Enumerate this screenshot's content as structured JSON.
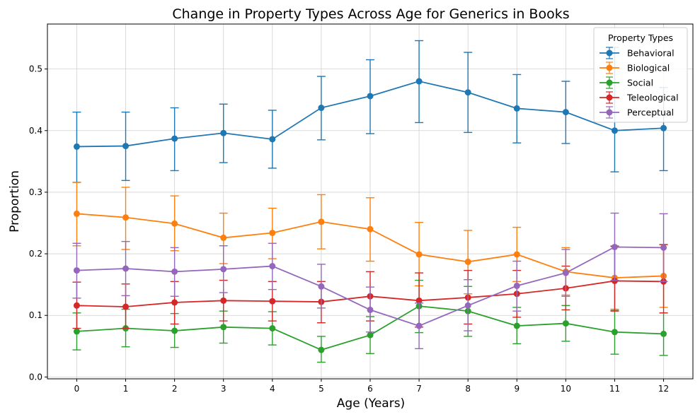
{
  "chart_data": {
    "type": "line",
    "title": "Change in Property Types Across Age for Generics in Books",
    "xlabel": "Age (Years)",
    "ylabel": "Proportion",
    "x": [
      0,
      1,
      2,
      3,
      4,
      5,
      6,
      7,
      8,
      9,
      10,
      11,
      12
    ],
    "xlim": [
      -0.6,
      12.6
    ],
    "ylim": [
      -0.003,
      0.573
    ],
    "yticks": [
      0.0,
      0.1,
      0.2,
      0.3,
      0.4,
      0.5
    ],
    "ytick_labels": [
      "0.0",
      "0.1",
      "0.2",
      "0.3",
      "0.4",
      "0.5"
    ],
    "grid": true,
    "legend": {
      "title": "Property Types",
      "placement": "top-right"
    },
    "error_bars": true,
    "series": [
      {
        "name": "Behavioral",
        "color": "#1f77b4",
        "values": [
          0.374,
          0.375,
          0.387,
          0.396,
          0.386,
          0.437,
          0.456,
          0.48,
          0.462,
          0.436,
          0.43,
          0.4,
          0.404
        ],
        "lower": [
          0.316,
          0.319,
          0.335,
          0.348,
          0.339,
          0.385,
          0.395,
          0.413,
          0.397,
          0.38,
          0.379,
          0.333,
          0.335
        ],
        "upper": [
          0.43,
          0.43,
          0.437,
          0.443,
          0.433,
          0.488,
          0.515,
          0.546,
          0.527,
          0.491,
          0.48,
          0.535,
          0.47
        ]
      },
      {
        "name": "Biological",
        "color": "#ff7f0e",
        "values": [
          0.265,
          0.259,
          0.249,
          0.226,
          0.234,
          0.252,
          0.24,
          0.199,
          0.187,
          0.199,
          0.171,
          0.161,
          0.164
        ],
        "lower": [
          0.213,
          0.207,
          0.205,
          0.184,
          0.192,
          0.208,
          0.188,
          0.148,
          0.135,
          0.155,
          0.133,
          0.11,
          0.113
        ],
        "upper": [
          0.316,
          0.308,
          0.294,
          0.266,
          0.274,
          0.296,
          0.291,
          0.251,
          0.238,
          0.243,
          0.21,
          0.213,
          0.215
        ]
      },
      {
        "name": "Social",
        "color": "#2ca02c",
        "values": [
          0.074,
          0.079,
          0.075,
          0.081,
          0.079,
          0.044,
          0.068,
          0.115,
          0.107,
          0.083,
          0.087,
          0.073,
          0.07
        ],
        "lower": [
          0.044,
          0.049,
          0.048,
          0.055,
          0.052,
          0.024,
          0.038,
          0.072,
          0.066,
          0.054,
          0.058,
          0.037,
          0.035
        ],
        "upper": [
          0.104,
          0.11,
          0.103,
          0.107,
          0.106,
          0.066,
          0.098,
          0.157,
          0.147,
          0.113,
          0.116,
          0.108,
          0.104
        ]
      },
      {
        "name": "Teleological",
        "color": "#d62728",
        "values": [
          0.116,
          0.114,
          0.121,
          0.124,
          0.123,
          0.122,
          0.131,
          0.124,
          0.129,
          0.135,
          0.144,
          0.156,
          0.155
        ],
        "lower": [
          0.079,
          0.079,
          0.086,
          0.091,
          0.091,
          0.088,
          0.091,
          0.081,
          0.086,
          0.097,
          0.109,
          0.107,
          0.104
        ],
        "upper": [
          0.154,
          0.151,
          0.155,
          0.157,
          0.155,
          0.155,
          0.171,
          0.169,
          0.173,
          0.173,
          0.18,
          0.212,
          0.215
        ]
      },
      {
        "name": "Perceptual",
        "color": "#9467bd",
        "values": [
          0.173,
          0.176,
          0.171,
          0.175,
          0.18,
          0.147,
          0.109,
          0.083,
          0.116,
          0.148,
          0.169,
          0.211,
          0.21
        ],
        "lower": [
          0.128,
          0.132,
          0.131,
          0.137,
          0.142,
          0.112,
          0.073,
          0.046,
          0.075,
          0.107,
          0.131,
          0.157,
          0.155
        ],
        "upper": [
          0.217,
          0.22,
          0.21,
          0.213,
          0.217,
          0.183,
          0.146,
          0.12,
          0.158,
          0.188,
          0.207,
          0.266,
          0.265
        ]
      }
    ]
  }
}
